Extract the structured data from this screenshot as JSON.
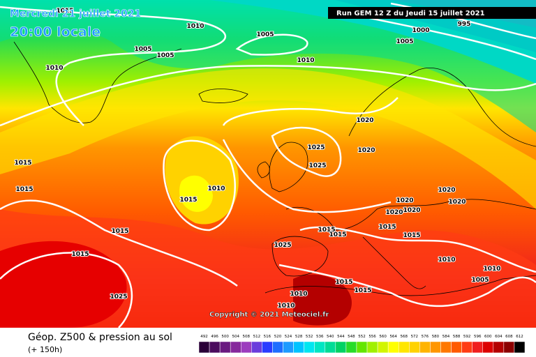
{
  "header": {
    "date": "Mercredi 21 juillet 2021",
    "time": "20:00 locale",
    "run": "Run GEM 12 Z du Jeudi 15 juillet 2021"
  },
  "copyright": "Copyright © 2021 Meteociel.fr",
  "footer": {
    "title": "Géop. Z500 & pression au sol",
    "lead": "(+ 150h)"
  },
  "legend": {
    "values": [
      492,
      496,
      500,
      504,
      508,
      512,
      516,
      520,
      524,
      528,
      532,
      536,
      540,
      544,
      548,
      552,
      556,
      560,
      564,
      568,
      572,
      576,
      580,
      584,
      588,
      592,
      596,
      600,
      604,
      608,
      612
    ],
    "colors": [
      "#2a0038",
      "#4b0c5e",
      "#6a1a80",
      "#86289c",
      "#9c3cbe",
      "#6a3cdc",
      "#2a3cff",
      "#1e6eff",
      "#1e9bff",
      "#00c3ff",
      "#00e6f0",
      "#00e6c3",
      "#00dc96",
      "#00d264",
      "#28dc28",
      "#64e600",
      "#a0f000",
      "#d2f500",
      "#ffff00",
      "#ffe600",
      "#ffd200",
      "#ffb400",
      "#ff9600",
      "#ff7800",
      "#ff5a00",
      "#ff3c14",
      "#f01e1e",
      "#dc0000",
      "#b40000",
      "#8c0000",
      "#000000"
    ]
  },
  "isobars": [
    "1015",
    "1010",
    "1005",
    "1005",
    "1005",
    "1010",
    "1010",
    "1000",
    "995",
    "1005",
    "1020",
    "1025",
    "1020",
    "1025",
    "1015",
    "1015",
    "1010",
    "1015",
    "1020",
    "1020",
    "1020",
    "1020",
    "1020",
    "1015",
    "1015",
    "1015",
    "1015",
    "1015",
    "1025",
    "1015",
    "1010",
    "1005",
    "1015",
    "1015",
    "1025",
    "1010",
    "1010",
    "1010"
  ]
}
